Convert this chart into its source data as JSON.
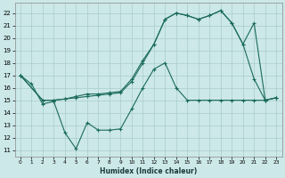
{
  "bg_color": "#cce8e8",
  "grid_color": "#aacccc",
  "line_color": "#1a6b5a",
  "xlabel": "Humidex (Indice chaleur)",
  "xlim": [
    -0.5,
    23.5
  ],
  "ylim": [
    10.5,
    22.8
  ],
  "yticks": [
    11,
    12,
    13,
    14,
    15,
    16,
    17,
    18,
    19,
    20,
    21,
    22
  ],
  "xticks": [
    0,
    1,
    2,
    3,
    4,
    5,
    6,
    7,
    8,
    9,
    10,
    11,
    12,
    13,
    14,
    15,
    16,
    17,
    18,
    19,
    20,
    21,
    22,
    23
  ],
  "line1_x": [
    0,
    1,
    2,
    3,
    4,
    5,
    6,
    7,
    8,
    9,
    10,
    11,
    12,
    13,
    14,
    15,
    16,
    17,
    18,
    19,
    20,
    21,
    22,
    23
  ],
  "line1_y": [
    17.0,
    16.3,
    14.7,
    14.9,
    12.4,
    11.1,
    13.2,
    12.6,
    12.6,
    12.7,
    14.3,
    16.0,
    17.5,
    18.0,
    16.0,
    15.0,
    15.0,
    15.0,
    15.0,
    15.0,
    15.0,
    15.0,
    15.0,
    15.2
  ],
  "line2_x": [
    0,
    2,
    3,
    4,
    5,
    6,
    7,
    8,
    9,
    10,
    11,
    12,
    13,
    14,
    15,
    16,
    17,
    18,
    19,
    20,
    21,
    22,
    23
  ],
  "line2_y": [
    17.0,
    15.0,
    15.0,
    15.1,
    15.2,
    15.3,
    15.4,
    15.5,
    15.6,
    16.5,
    18.0,
    19.5,
    21.5,
    22.0,
    21.8,
    21.5,
    21.8,
    22.2,
    21.2,
    19.5,
    16.7,
    15.0,
    15.2
  ],
  "line3_x": [
    0,
    2,
    3,
    4,
    5,
    6,
    7,
    8,
    9,
    10,
    11,
    12,
    13,
    14,
    15,
    16,
    17,
    18,
    19,
    20,
    21,
    22,
    23
  ],
  "line3_y": [
    17.0,
    15.0,
    15.0,
    15.1,
    15.3,
    15.5,
    15.5,
    15.6,
    15.7,
    16.7,
    18.2,
    19.5,
    21.5,
    22.0,
    21.8,
    21.5,
    21.8,
    22.2,
    21.2,
    19.5,
    21.2,
    15.0,
    15.2
  ]
}
